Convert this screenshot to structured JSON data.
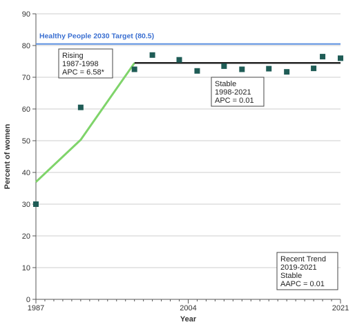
{
  "chart_data": {
    "type": "scatter",
    "xlabel": "Year",
    "ylabel": "Percent of women",
    "xlim": [
      1987,
      2021
    ],
    "ylim": [
      0,
      90
    ],
    "y_ticks": [
      0,
      10,
      20,
      30,
      40,
      50,
      60,
      70,
      80,
      90
    ],
    "x_ticks": [
      1987,
      2004,
      2021
    ],
    "grid": "horizontal",
    "colors": {
      "points": "#1f5c56",
      "rising_trend": "#7fd46a",
      "stable_trend": "#222222",
      "target": "#5b8fe0",
      "target_text": "#3a6fd1",
      "grid": "#cccccc",
      "axis": "#555555"
    },
    "target": {
      "value": 80.5,
      "label": "Healthy People 2030 Target (80.5)"
    },
    "series": [
      {
        "values": [
          {
            "x": 1987,
            "y": 30.0
          },
          {
            "x": 1992,
            "y": 60.5
          },
          {
            "x": 1998,
            "y": 72.5
          },
          {
            "x": 2000,
            "y": 77.0
          },
          {
            "x": 2003,
            "y": 75.5
          },
          {
            "x": 2005,
            "y": 72.0
          },
          {
            "x": 2008,
            "y": 73.5
          },
          {
            "x": 2010,
            "y": 72.5
          },
          {
            "x": 2013,
            "y": 72.7
          },
          {
            "x": 2015,
            "y": 71.7
          },
          {
            "x": 2018,
            "y": 72.8
          },
          {
            "x": 2019,
            "y": 76.5
          },
          {
            "x": 2021,
            "y": 76.0
          }
        ]
      }
    ],
    "trend_lines": [
      {
        "segment": "rising",
        "points": [
          {
            "x": 1987,
            "y": 37.0
          },
          {
            "x": 1992,
            "y": 50.3
          },
          {
            "x": 1998,
            "y": 74.5
          }
        ]
      },
      {
        "segment": "stable",
        "points": [
          {
            "x": 1998,
            "y": 74.5
          },
          {
            "x": 2021,
            "y": 74.5
          }
        ]
      }
    ],
    "annotations": {
      "rising": [
        "Rising",
        "1987-1998",
        "APC =  6.58*"
      ],
      "stable": [
        "Stable",
        "1998-2021",
        "APC =  0.01"
      ],
      "recent": [
        "Recent Trend",
        "2019-2021",
        "Stable",
        "AAPC =  0.01"
      ]
    }
  }
}
